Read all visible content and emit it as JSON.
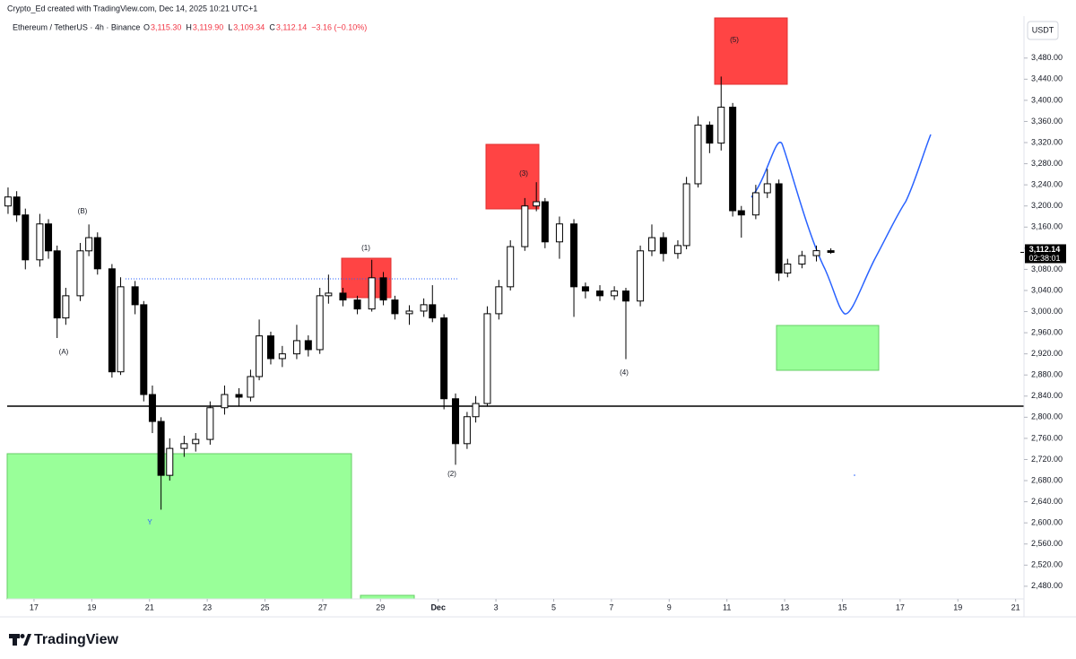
{
  "header": {
    "credit": "Crypto_Ed created with TradingView.com, Dec 14, 2025 10:21 UTC+1",
    "symbol": "Ethereum / TetherUS · 4h · Binance",
    "ohlc": [
      {
        "label": "O",
        "value": "3,115.30"
      },
      {
        "label": "H",
        "value": "3,119.90"
      },
      {
        "label": "L",
        "value": "3,109.34"
      },
      {
        "label": "C",
        "value": "3,112.14"
      }
    ],
    "change": "−3.16 (−0.10%)",
    "currency": "USDT"
  },
  "footer": {
    "brand": "TradingView"
  },
  "chart_data": {
    "type": "candlestick",
    "x": [
      16.1,
      16.4,
      16.7,
      17.2,
      17.5,
      17.8,
      18.1,
      18.6,
      18.9,
      19.2,
      19.7,
      20.0,
      20.5,
      20.8,
      21.1,
      21.4,
      21.7,
      22.2,
      22.6,
      23.1,
      23.6,
      24.1,
      24.5,
      24.8,
      25.2,
      25.6,
      26.1,
      26.5,
      26.9,
      27.2,
      27.7,
      28.2,
      28.7,
      29.1,
      29.5,
      30.0,
      30.5,
      30.8,
      31.2,
      31.6,
      32.0,
      32.3,
      32.7,
      33.1,
      33.5,
      34.0,
      34.4,
      34.7,
      35.2,
      35.7,
      36.1,
      36.6,
      37.1,
      37.5,
      38.0,
      38.4,
      38.8,
      39.3,
      39.6,
      40.0,
      40.4,
      40.8,
      41.2,
      41.5,
      42.0,
      42.4,
      42.8,
      43.1,
      43.6,
      44.1,
      44.6
    ],
    "open": [
      3200,
      3217,
      3183,
      3098,
      3166,
      3115,
      2988,
      3030,
      3115,
      3140,
      3081,
      2886,
      3047,
      3013,
      2843,
      2792,
      2690,
      2741,
      2750,
      2758,
      2818,
      2843,
      2838,
      2877,
      2954,
      2911,
      2920,
      2945,
      2928,
      3030,
      3035,
      3022,
      3005,
      3064,
      3022,
      2996,
      3001,
      3013,
      2988,
      2835,
      2750,
      2801,
      2826,
      2996,
      3047,
      3123,
      3200,
      3208,
      3132,
      3166,
      3047,
      3039,
      3030,
      3039,
      3020,
      3115,
      3140,
      3110,
      3125,
      3242,
      3353,
      3319,
      3387,
      3191,
      3183,
      3225,
      3242,
      3073,
      3090,
      3106,
      3115.3
    ],
    "high": [
      3235,
      3228,
      3195,
      3185,
      3175,
      3125,
      3045,
      3130,
      3165,
      3150,
      3090,
      3065,
      3058,
      3020,
      2860,
      2800,
      2760,
      2765,
      2770,
      2830,
      2860,
      2855,
      2890,
      2985,
      2962,
      2935,
      2975,
      2955,
      3045,
      3070,
      3045,
      3030,
      3098,
      3075,
      3030,
      3012,
      3025,
      3050,
      2995,
      2845,
      2810,
      2840,
      3010,
      3060,
      3135,
      3215,
      3245,
      3215,
      3180,
      3175,
      3055,
      3050,
      3048,
      3045,
      3125,
      3165,
      3150,
      3135,
      3255,
      3370,
      3360,
      3445,
      3395,
      3200,
      3240,
      3270,
      3250,
      3100,
      3115,
      3125,
      3119.9
    ],
    "low": [
      3185,
      3170,
      3080,
      3085,
      3100,
      2950,
      2975,
      3020,
      3105,
      3070,
      2875,
      2880,
      2995,
      2830,
      2770,
      2625,
      2680,
      2725,
      2735,
      2748,
      2805,
      2820,
      2830,
      2870,
      2900,
      2895,
      2910,
      2915,
      2920,
      3015,
      3010,
      2995,
      3000,
      3012,
      2985,
      2975,
      2990,
      2980,
      2815,
      2710,
      2740,
      2790,
      2820,
      2985,
      3040,
      3115,
      3190,
      3120,
      3100,
      2990,
      3025,
      3020,
      3022,
      2910,
      3010,
      3105,
      3095,
      3100,
      3118,
      3235,
      3300,
      3305,
      3180,
      3140,
      3175,
      3215,
      3058,
      3065,
      3082,
      3095,
      3109.34
    ],
    "close": [
      3217,
      3183,
      3098,
      3166,
      3115,
      2988,
      3030,
      3115,
      3140,
      3081,
      2886,
      3047,
      3013,
      2843,
      2792,
      2690,
      2741,
      2750,
      2758,
      2818,
      2843,
      2838,
      2877,
      2954,
      2911,
      2920,
      2945,
      2928,
      3030,
      3035,
      3022,
      3005,
      3064,
      3022,
      2996,
      3001,
      3013,
      2988,
      2835,
      2750,
      2801,
      2826,
      2996,
      3047,
      3123,
      3200,
      3208,
      3132,
      3166,
      3047,
      3039,
      3030,
      3039,
      3020,
      3115,
      3140,
      3110,
      3125,
      3242,
      3353,
      3319,
      3387,
      3191,
      3183,
      3225,
      3242,
      3073,
      3090,
      3106,
      3115.3,
      3112.14
    ],
    "up_color": "#ffffff",
    "down_color": "#000000",
    "xlim": [
      16.07,
      51.29
    ],
    "xticks": [
      17,
      19,
      21,
      23,
      25,
      27,
      29,
      {
        "value": 31,
        "label": "Dec"
      },
      {
        "value": 33,
        "label": "3"
      },
      {
        "value": 35,
        "label": "5"
      },
      {
        "value": 37,
        "label": "7"
      },
      {
        "value": 39,
        "label": "9"
      },
      {
        "value": 41,
        "label": "11"
      },
      {
        "value": 43,
        "label": "13"
      },
      {
        "value": 45,
        "label": "15"
      },
      {
        "value": 47,
        "label": "17"
      },
      {
        "value": 49,
        "label": "19"
      },
      {
        "value": 51,
        "label": "21"
      }
    ],
    "ylim": [
      2456,
      3556
    ],
    "yticks": [
      {
        "value": 2480,
        "label": "2,480.00"
      },
      {
        "value": 2520,
        "label": "2,520.00"
      },
      {
        "value": 2560,
        "label": "2,560.00"
      },
      {
        "value": 2600,
        "label": "2,600.00"
      },
      {
        "value": 2640,
        "label": "2,640.00"
      },
      {
        "value": 2680,
        "label": "2,680.00"
      },
      {
        "value": 2720,
        "label": "2,720.00"
      },
      {
        "value": 2760,
        "label": "2,760.00"
      },
      {
        "value": 2800,
        "label": "2,800.00"
      },
      {
        "value": 2840,
        "label": "2,840.00"
      },
      {
        "value": 2880,
        "label": "2,880.00"
      },
      {
        "value": 2920,
        "label": "2,920.00"
      },
      {
        "value": 2960,
        "label": "2,960.00"
      },
      {
        "value": 3000,
        "label": "3,000.00"
      },
      {
        "value": 3040,
        "label": "3,040.00"
      },
      {
        "value": 3080,
        "label": "3,080.00"
      },
      {
        "value": 3120,
        "label": "3,120.00"
      },
      {
        "value": 3160,
        "label": "3,160.00"
      },
      {
        "value": 3200,
        "label": "3,200.00"
      },
      {
        "value": 3240,
        "label": "3,240.00"
      },
      {
        "value": 3280,
        "label": "3,280.00"
      },
      {
        "value": 3320,
        "label": "3,320.00"
      },
      {
        "value": 3360,
        "label": "3,360.00"
      },
      {
        "value": 3400,
        "label": "3,400.00"
      },
      {
        "value": 3440,
        "label": "3,440.00"
      },
      {
        "value": 3480,
        "label": "3,480.00"
      }
    ],
    "last_price": {
      "value": 3112.14,
      "label": "3,112.14"
    },
    "countdown": "02:38:01",
    "annotations": [
      "(A)",
      "(B)",
      "Y",
      "(1)",
      "(2)",
      "(3)",
      "(4)",
      "(5)"
    ]
  }
}
